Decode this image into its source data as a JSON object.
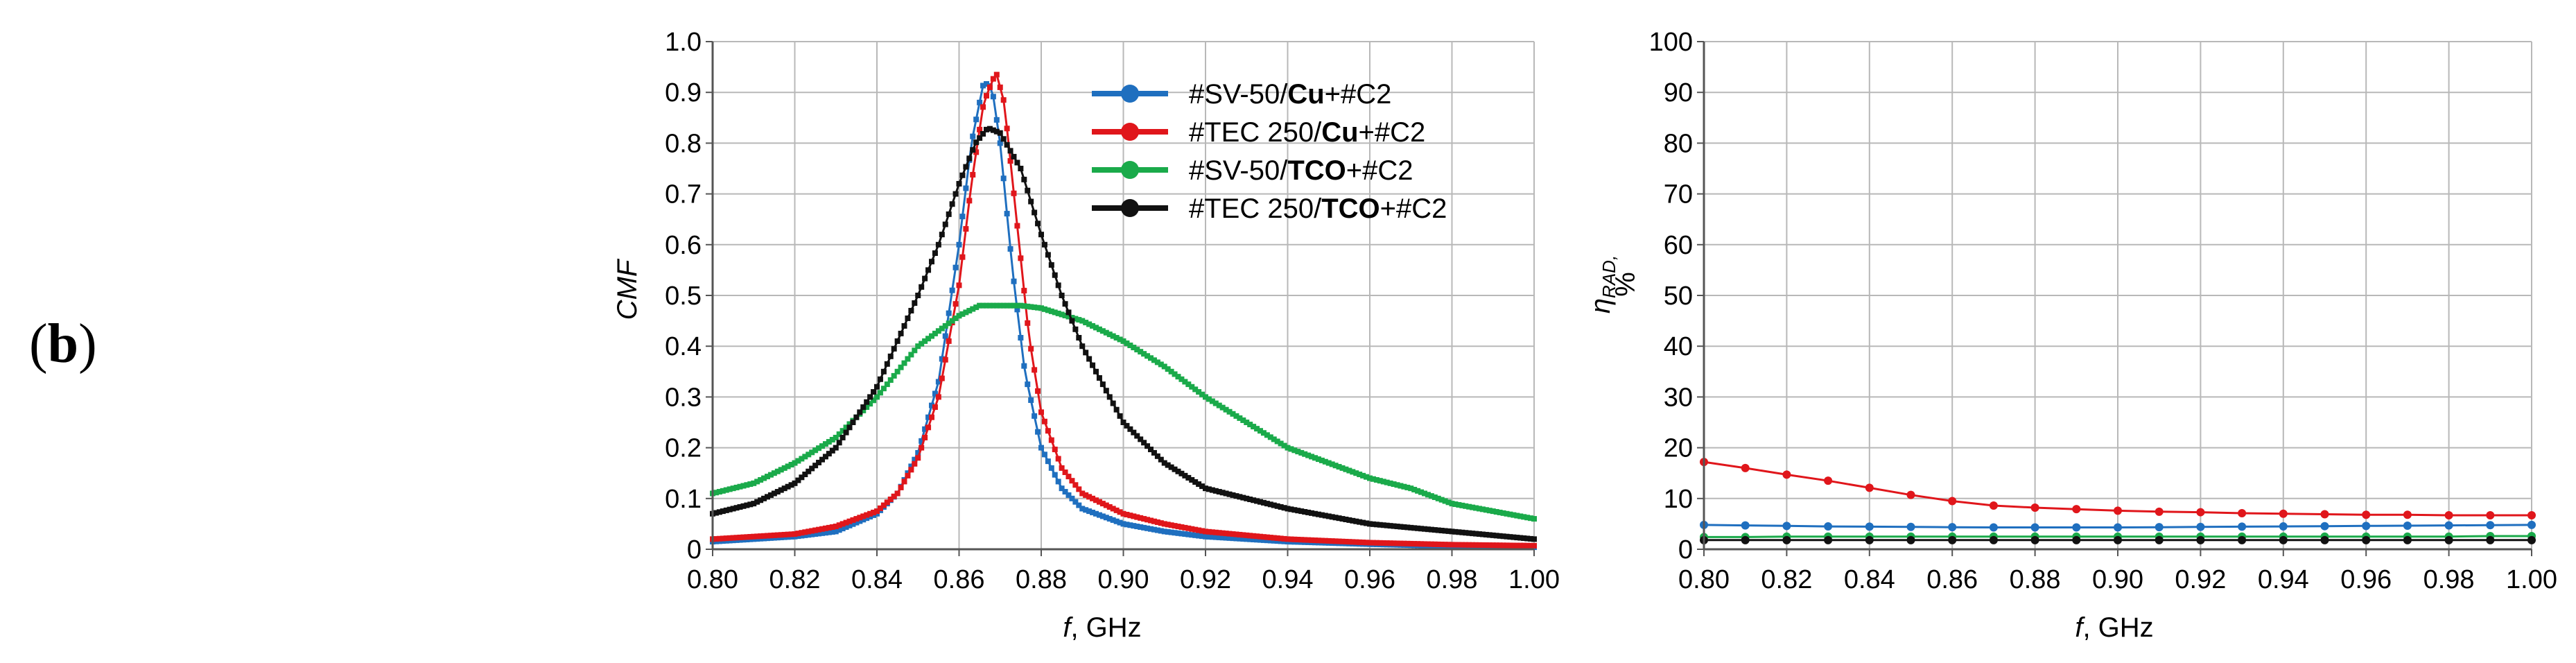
{
  "panel_label": {
    "open": "(",
    "letter": "b",
    "close": ")"
  },
  "colors": {
    "sv_cu": "#1f6fbf",
    "tec_cu": "#e0161b",
    "sv_tco": "#1aaa4a",
    "tec_tco": "#111111"
  },
  "chart_data": [
    {
      "type": "line",
      "title": "",
      "xlabel_italic": "f",
      "xlabel_rest": ", GHz",
      "ylabel": "CMF",
      "xlim": [
        0.8,
        1.0
      ],
      "ylim": [
        0,
        1.0
      ],
      "grid": true,
      "legend_position": "top-right",
      "xticks": [
        "0.80",
        "0.82",
        "0.84",
        "0.86",
        "0.88",
        "0.90",
        "0.92",
        "0.94",
        "0.96",
        "0.98",
        "1.00"
      ],
      "yticks": [
        "0",
        "0.1",
        "0.2",
        "0.3",
        "0.4",
        "0.5",
        "0.6",
        "0.7",
        "0.8",
        "0.9",
        "1.0"
      ],
      "series": [
        {
          "name": "#SV-50/Cu+#C2",
          "key": "sv_cu",
          "legend_parts": [
            "#SV-50/",
            "Cu",
            "+#C2"
          ],
          "x": [
            0.8,
            0.82,
            0.83,
            0.84,
            0.845,
            0.85,
            0.855,
            0.86,
            0.863,
            0.866,
            0.868,
            0.87,
            0.873,
            0.876,
            0.88,
            0.885,
            0.89,
            0.9,
            0.91,
            0.92,
            0.94,
            0.96,
            0.98,
            1.0
          ],
          "y": [
            0.015,
            0.025,
            0.035,
            0.07,
            0.11,
            0.19,
            0.33,
            0.6,
            0.8,
            0.92,
            0.91,
            0.8,
            0.55,
            0.35,
            0.2,
            0.12,
            0.08,
            0.05,
            0.035,
            0.025,
            0.015,
            0.01,
            0.006,
            0.004
          ]
        },
        {
          "name": "#TEC 250/Cu+#C2",
          "key": "tec_cu",
          "legend_parts": [
            "#TEC 250/",
            "Cu",
            "+#C2"
          ],
          "x": [
            0.8,
            0.82,
            0.83,
            0.84,
            0.845,
            0.85,
            0.855,
            0.86,
            0.863,
            0.866,
            0.869,
            0.871,
            0.874,
            0.877,
            0.88,
            0.885,
            0.89,
            0.9,
            0.91,
            0.92,
            0.94,
            0.96,
            0.98,
            1.0
          ],
          "y": [
            0.02,
            0.03,
            0.045,
            0.075,
            0.11,
            0.18,
            0.3,
            0.52,
            0.72,
            0.88,
            0.94,
            0.88,
            0.65,
            0.42,
            0.27,
            0.16,
            0.11,
            0.07,
            0.05,
            0.035,
            0.02,
            0.013,
            0.009,
            0.007
          ]
        },
        {
          "name": "#SV-50/TCO+#C2",
          "key": "sv_tco",
          "legend_parts": [
            "#SV-50/",
            "TCO",
            "+#C2"
          ],
          "x": [
            0.8,
            0.81,
            0.82,
            0.83,
            0.84,
            0.85,
            0.86,
            0.865,
            0.87,
            0.875,
            0.88,
            0.89,
            0.9,
            0.91,
            0.92,
            0.93,
            0.94,
            0.95,
            0.96,
            0.97,
            0.98,
            0.99,
            1.0
          ],
          "y": [
            0.11,
            0.13,
            0.17,
            0.22,
            0.3,
            0.4,
            0.46,
            0.48,
            0.48,
            0.48,
            0.475,
            0.45,
            0.41,
            0.36,
            0.3,
            0.25,
            0.2,
            0.17,
            0.14,
            0.12,
            0.09,
            0.075,
            0.06
          ]
        },
        {
          "name": "#TEC 250/TCO+#C2",
          "key": "tec_tco",
          "legend_parts": [
            "#TEC 250/",
            "TCO",
            "+#C2"
          ],
          "x": [
            0.8,
            0.81,
            0.82,
            0.83,
            0.84,
            0.85,
            0.855,
            0.86,
            0.864,
            0.867,
            0.87,
            0.875,
            0.88,
            0.885,
            0.89,
            0.9,
            0.91,
            0.92,
            0.93,
            0.94,
            0.96,
            0.98,
            1.0
          ],
          "y": [
            0.07,
            0.09,
            0.13,
            0.2,
            0.32,
            0.5,
            0.6,
            0.72,
            0.8,
            0.83,
            0.82,
            0.75,
            0.62,
            0.5,
            0.4,
            0.25,
            0.17,
            0.12,
            0.1,
            0.08,
            0.05,
            0.035,
            0.02
          ]
        }
      ]
    },
    {
      "type": "line",
      "title": "",
      "xlabel_italic": "f",
      "xlabel_rest": ", GHz",
      "ylabel_eta": "η",
      "ylabel_sub": "RAD,",
      "ylabel_unit": "%",
      "xlim": [
        0.8,
        1.0
      ],
      "ylim": [
        0,
        100
      ],
      "grid": true,
      "xticks": [
        "0.80",
        "0.82",
        "0.84",
        "0.86",
        "0.88",
        "0.90",
        "0.92",
        "0.94",
        "0.96",
        "0.98",
        "1.00"
      ],
      "yticks": [
        "0",
        "10",
        "20",
        "30",
        "40",
        "50",
        "60",
        "70",
        "80",
        "90",
        "100"
      ],
      "series": [
        {
          "name": "#SV-50/Cu+#C2",
          "key": "sv_cu",
          "x": [
            0.8,
            0.81,
            0.82,
            0.83,
            0.84,
            0.85,
            0.86,
            0.87,
            0.88,
            0.89,
            0.9,
            0.91,
            0.92,
            0.93,
            0.94,
            0.95,
            0.96,
            0.97,
            0.98,
            0.99,
            1.0
          ],
          "y": [
            4.8,
            4.7,
            4.6,
            4.5,
            4.45,
            4.4,
            4.35,
            4.3,
            4.3,
            4.3,
            4.3,
            4.35,
            4.4,
            4.45,
            4.5,
            4.55,
            4.6,
            4.65,
            4.7,
            4.75,
            4.8
          ]
        },
        {
          "name": "#TEC 250/Cu+#C2",
          "key": "tec_cu",
          "x": [
            0.8,
            0.81,
            0.82,
            0.83,
            0.84,
            0.85,
            0.86,
            0.87,
            0.88,
            0.89,
            0.9,
            0.91,
            0.92,
            0.93,
            0.94,
            0.95,
            0.96,
            0.97,
            0.98,
            0.99,
            1.0
          ],
          "y": [
            17.2,
            16.0,
            14.7,
            13.5,
            12.1,
            10.7,
            9.5,
            8.6,
            8.2,
            7.9,
            7.6,
            7.4,
            7.3,
            7.1,
            7.0,
            6.9,
            6.8,
            6.8,
            6.7,
            6.7,
            6.7
          ]
        },
        {
          "name": "#SV-50/TCO+#C2",
          "key": "sv_tco",
          "x": [
            0.8,
            0.81,
            0.82,
            0.83,
            0.84,
            0.85,
            0.86,
            0.87,
            0.88,
            0.89,
            0.9,
            0.91,
            0.92,
            0.93,
            0.94,
            0.95,
            0.96,
            0.97,
            0.98,
            0.99,
            1.0
          ],
          "y": [
            2.4,
            2.4,
            2.5,
            2.5,
            2.5,
            2.5,
            2.5,
            2.5,
            2.5,
            2.5,
            2.5,
            2.5,
            2.5,
            2.5,
            2.5,
            2.5,
            2.5,
            2.5,
            2.5,
            2.6,
            2.6
          ]
        },
        {
          "name": "#TEC 250/TCO+#C2",
          "key": "tec_tco",
          "x": [
            0.8,
            0.81,
            0.82,
            0.83,
            0.84,
            0.85,
            0.86,
            0.87,
            0.88,
            0.89,
            0.9,
            0.91,
            0.92,
            0.93,
            0.94,
            0.95,
            0.96,
            0.97,
            0.98,
            0.99,
            1.0
          ],
          "y": [
            1.8,
            1.8,
            1.8,
            1.8,
            1.8,
            1.8,
            1.8,
            1.8,
            1.8,
            1.8,
            1.8,
            1.8,
            1.8,
            1.8,
            1.8,
            1.8,
            1.8,
            1.8,
            1.8,
            1.8,
            1.8
          ]
        }
      ]
    }
  ]
}
